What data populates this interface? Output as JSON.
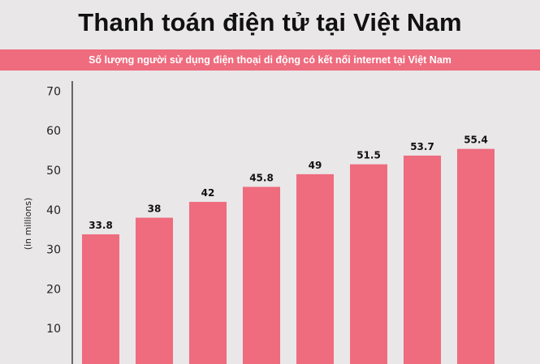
{
  "header": {
    "title": "Thanh toán điện tử tại Việt Nam",
    "subtitle": "Số lượng người sử dụng điện thoại di động có kết nối internet tại Việt Nam"
  },
  "colors": {
    "bar": "#ef6b7e",
    "banner": "#ef6b7e",
    "background": "#e9e7e8"
  },
  "chart_data": {
    "type": "bar",
    "title": "",
    "xlabel": "",
    "ylabel": "(in millions)",
    "ylim": [
      0,
      70
    ],
    "yticks": [
      10,
      20,
      30,
      40,
      50,
      60,
      70
    ],
    "categories": [
      "",
      "",
      "",
      "",
      "",
      "",
      "",
      ""
    ],
    "values": [
      33.8,
      38,
      42,
      45.8,
      49,
      51.5,
      53.7,
      55.4
    ],
    "value_labels": [
      "33.8",
      "38",
      "42",
      "45.8",
      "49",
      "51.5",
      "53.7",
      "55.4"
    ],
    "grid": false
  }
}
